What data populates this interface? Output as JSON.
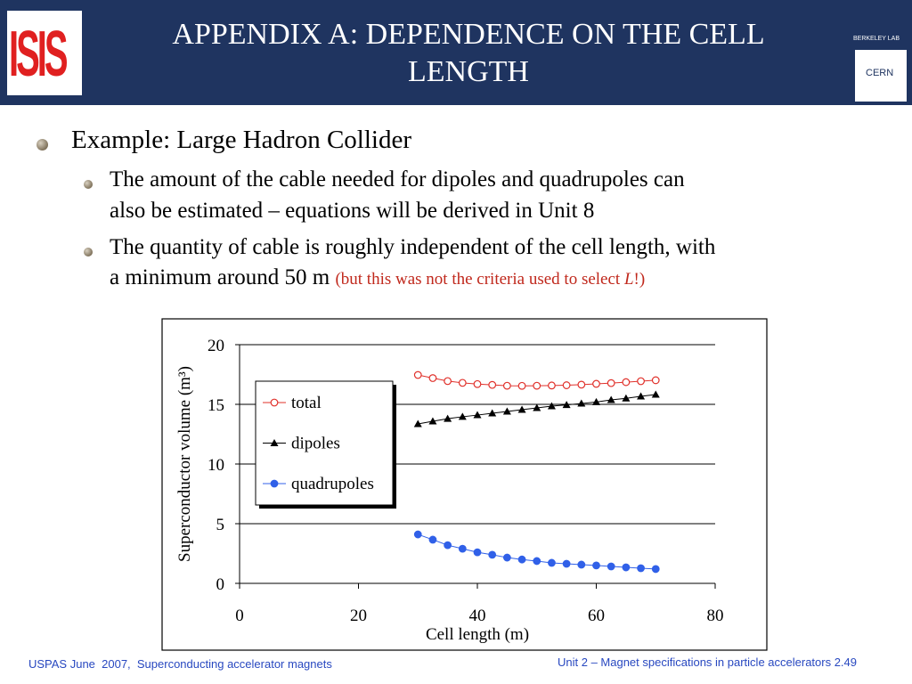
{
  "header": {
    "title_line1": "APPENDIX A: DEPENDENCE ON THE CELL",
    "title_line2": "LENGTH",
    "logo_left": "ISIS",
    "logo_right_top": "BERKELEY LAB",
    "logo_right_bottom": "CERN"
  },
  "bullets": {
    "main": "Example: Large Hadron Collider",
    "sub": [
      {
        "line1": "The amount of the cable needed for dipoles and quadrupoles can",
        "line2": "also be estimated – equations will be derived in Unit 8"
      },
      {
        "line1": "The quantity of cable is roughly independent of the cell length, with",
        "line2": "a minimum around 50 m",
        "note_start": "(but this was not the criteria used to select ",
        "note_italic": "L",
        "note_end": "!)"
      }
    ]
  },
  "chart_data": {
    "type": "line",
    "x_label": "Cell length (m)",
    "y_label": "Superconductor volume (m³)",
    "x": [
      30,
      32.5,
      35,
      37.5,
      40,
      42.5,
      45,
      47.5,
      50,
      52.5,
      55,
      57.5,
      60,
      62.5,
      65,
      67.5,
      70
    ],
    "series": [
      {
        "name": "total",
        "color": "#e0302a",
        "marker": "open-circle",
        "values": [
          17.46,
          17.2,
          16.95,
          16.8,
          16.7,
          16.63,
          16.56,
          16.55,
          16.56,
          16.58,
          16.6,
          16.65,
          16.72,
          16.78,
          16.86,
          16.94,
          17.02
        ]
      },
      {
        "name": "dipoles",
        "color": "#000000",
        "marker": "triangle",
        "values": [
          13.36,
          13.58,
          13.8,
          13.96,
          14.1,
          14.25,
          14.4,
          14.55,
          14.7,
          14.85,
          14.95,
          15.07,
          15.2,
          15.37,
          15.5,
          15.67,
          15.82
        ]
      },
      {
        "name": "quadrupoles",
        "color": "#3060e8",
        "marker": "circle",
        "values": [
          4.1,
          3.66,
          3.2,
          2.9,
          2.6,
          2.4,
          2.16,
          2.0,
          1.87,
          1.72,
          1.64,
          1.57,
          1.5,
          1.42,
          1.34,
          1.27,
          1.2
        ]
      }
    ],
    "xlim": [
      0,
      80
    ],
    "xticks": [
      0,
      20,
      40,
      60,
      80
    ],
    "ylim": [
      0,
      20
    ],
    "yticks": [
      0,
      5,
      10,
      15,
      20
    ],
    "grid": true,
    "legend": "upper-left"
  },
  "footer": {
    "left": "USPAS June  2007,  Superconducting accelerator magnets",
    "right": "Unit 2 – Magnet specifications in particle accelerators 2.49"
  }
}
